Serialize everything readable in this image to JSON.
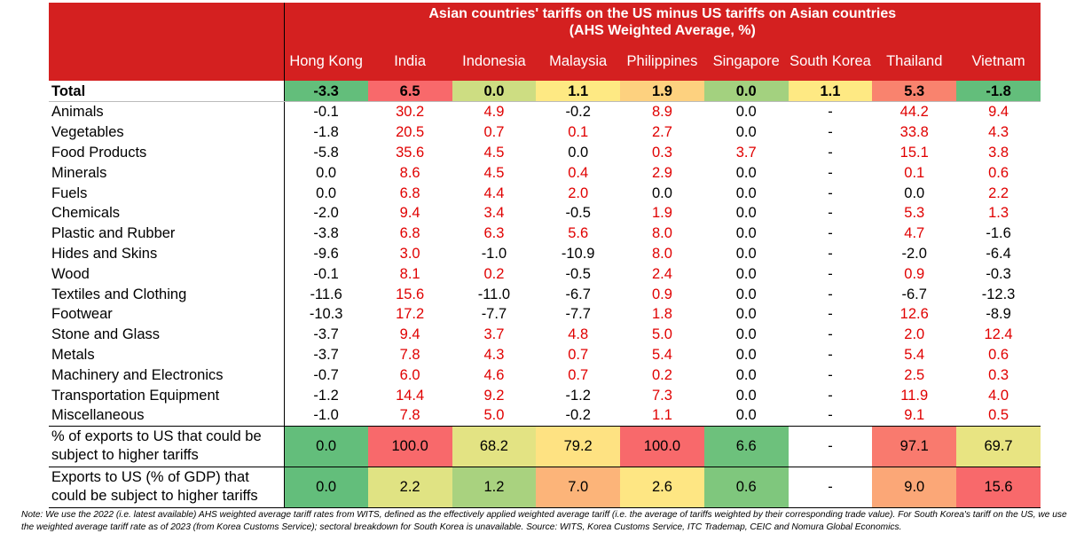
{
  "header": {
    "title_lines": [
      "Asian countries' tariffs on the US minus US tariffs on Asian countries",
      "(AHS Weighted Average, %)"
    ],
    "columns": [
      "Hong Kong",
      "India",
      "Indonesia",
      "Malaysia",
      "Philippines",
      "Singapore",
      "South Korea",
      "Thailand",
      "Vietnam"
    ]
  },
  "rows": [
    {
      "label": "Total",
      "values": [
        "-3.3",
        "6.5",
        "0.0",
        "1.1",
        "1.9",
        "0.0",
        "1.1",
        "5.3",
        "-1.8"
      ],
      "colors": [
        "#63be7b",
        "#f8696b",
        "#cddd82",
        "#fee983",
        "#fdd17f",
        "#a3d17f",
        "#fee983",
        "#f9836e",
        "#63be7b"
      ]
    },
    {
      "label": "Animals",
      "values": [
        "-0.1",
        "30.2",
        "4.9",
        "-0.2",
        "8.9",
        "0.0",
        "-",
        "44.2",
        "9.4"
      ]
    },
    {
      "label": "Vegetables",
      "values": [
        "-1.8",
        "20.5",
        "0.7",
        "0.1",
        "2.7",
        "0.0",
        "-",
        "33.8",
        "4.3"
      ]
    },
    {
      "label": "Food Products",
      "values": [
        "-5.8",
        "35.6",
        "4.5",
        "0.0",
        "0.3",
        "3.7",
        "-",
        "15.1",
        "3.8"
      ]
    },
    {
      "label": "Minerals",
      "values": [
        "0.0",
        "8.6",
        "4.5",
        "0.4",
        "2.9",
        "0.0",
        "-",
        "0.1",
        "0.6"
      ]
    },
    {
      "label": "Fuels",
      "values": [
        "0.0",
        "6.8",
        "4.4",
        "2.0",
        "0.0",
        "0.0",
        "-",
        "0.0",
        "2.2"
      ]
    },
    {
      "label": "Chemicals",
      "values": [
        "-2.0",
        "9.4",
        "3.4",
        "-0.5",
        "1.9",
        "0.0",
        "-",
        "5.3",
        "1.3"
      ]
    },
    {
      "label": "Plastic and Rubber",
      "values": [
        "-3.8",
        "6.8",
        "6.3",
        "5.6",
        "8.0",
        "0.0",
        "-",
        "4.7",
        "-1.6"
      ]
    },
    {
      "label": "Hides and Skins",
      "values": [
        "-9.6",
        "3.0",
        "-1.0",
        "-10.9",
        "8.0",
        "0.0",
        "-",
        "-2.0",
        "-6.4"
      ]
    },
    {
      "label": "Wood",
      "values": [
        "-0.1",
        "8.1",
        "0.2",
        "-0.5",
        "2.4",
        "0.0",
        "-",
        "0.9",
        "-0.3"
      ]
    },
    {
      "label": "Textiles and Clothing",
      "values": [
        "-11.6",
        "15.6",
        "-11.0",
        "-6.7",
        "0.9",
        "0.0",
        "-",
        "-6.7",
        "-12.3"
      ]
    },
    {
      "label": "Footwear",
      "values": [
        "-10.3",
        "17.2",
        "-7.7",
        "-7.7",
        "1.8",
        "0.0",
        "-",
        "12.6",
        "-8.9"
      ]
    },
    {
      "label": "Stone and Glass",
      "values": [
        "-3.7",
        "9.4",
        "3.7",
        "4.8",
        "5.0",
        "0.0",
        "-",
        "2.0",
        "12.4"
      ]
    },
    {
      "label": "Metals",
      "values": [
        "-3.7",
        "7.8",
        "4.3",
        "0.7",
        "5.4",
        "0.0",
        "-",
        "5.4",
        "0.6"
      ]
    },
    {
      "label": "Machinery and Electronics",
      "values": [
        "-0.7",
        "6.0",
        "4.6",
        "0.7",
        "0.2",
        "0.0",
        "-",
        "2.5",
        "0.3"
      ]
    },
    {
      "label": "Transportation Equipment",
      "values": [
        "-1.2",
        "14.4",
        "9.2",
        "-1.2",
        "7.3",
        "0.0",
        "-",
        "11.9",
        "4.0"
      ]
    },
    {
      "label": "Miscellaneous",
      "values": [
        "-1.0",
        "7.8",
        "5.0",
        "-0.2",
        "1.1",
        "0.0",
        "-",
        "9.1",
        "0.5"
      ]
    },
    {
      "label": "% of exports to US that could be subject to higher tariffs",
      "values": [
        "0.0",
        "100.0",
        "68.2",
        "79.2",
        "100.0",
        "6.6",
        "-",
        "97.1",
        "69.7"
      ],
      "colors": [
        "#63be7b",
        "#f8696b",
        "#e3e383",
        "#fee282",
        "#f8696b",
        "#6dc17c",
        "#ffffff",
        "#f97a6e",
        "#e8e482"
      ]
    },
    {
      "label": "Exports to US (% of GDP) that could be subject to higher tariffs",
      "values": [
        "0.0",
        "2.2",
        "1.2",
        "7.0",
        "2.6",
        "0.6",
        "-",
        "9.0",
        "15.6"
      ],
      "colors": [
        "#63be7b",
        "#e0e383",
        "#a9d27f",
        "#fcb479",
        "#fee683",
        "#7fc77d",
        "#ffffff",
        "#fba777",
        "#f8696b"
      ]
    }
  ],
  "note": "Note: We use the 2022 (i.e. latest available) AHS weighted average tariff rates from WITS, defined as the effectively applied weighted average tariff (i.e. the average of tariffs weighted by their corresponding trade value). For South Korea's tariff on the US, we use the weighted average tariff rate as of 2023 (from Korea Customs Service); sectoral breakdown for South Korea is unavailable. Source: WITS, Korea Customs Service, ITC Trademap, CEIC and Nomura Global Economics."
}
